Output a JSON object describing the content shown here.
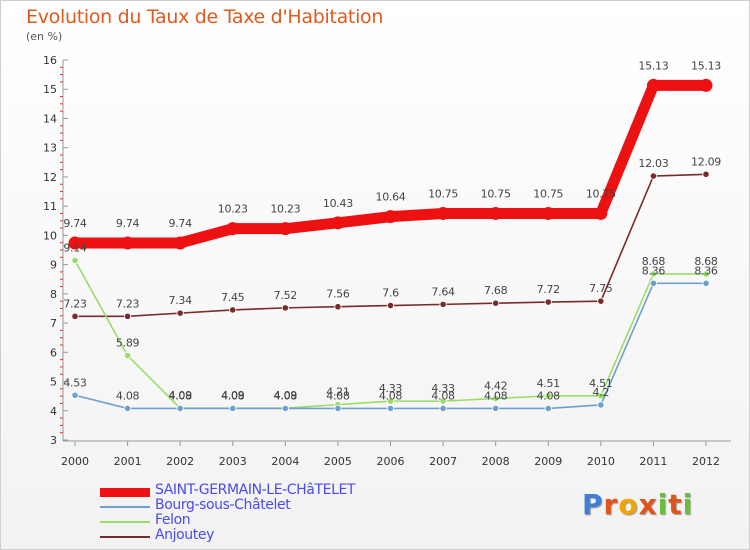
{
  "header": {
    "title": "Evolution du Taux de Taxe d'Habitation",
    "subtitle": "(en %)"
  },
  "logo": {
    "letters": [
      "P",
      "r",
      "o",
      "x",
      "i",
      "t",
      "i"
    ],
    "colors": [
      "#3f80d4",
      "#e0551d",
      "#f0a500",
      "#e0551d",
      "#6abf3a",
      "#e0551d",
      "#6abf3a"
    ]
  },
  "chart_data": {
    "type": "line",
    "title": "Evolution du Taux de Taxe d'Habitation",
    "ylabel": "(en %)",
    "xlabel": "",
    "categories": [
      "2000",
      "2001",
      "2002",
      "2003",
      "2004",
      "2005",
      "2006",
      "2007",
      "2008",
      "2009",
      "2010",
      "2011",
      "2012"
    ],
    "y_ticks": [
      3,
      4,
      5,
      6,
      7,
      8,
      9,
      10,
      11,
      12,
      13,
      14,
      15,
      16
    ],
    "ylim": [
      3,
      16
    ],
    "grid": false,
    "series": [
      {
        "name": "SAINT-GERMAIN-LE-CHâTELET",
        "color": "#ee1111",
        "values": [
          9.74,
          9.74,
          9.74,
          10.23,
          10.23,
          10.43,
          10.64,
          10.75,
          10.75,
          10.75,
          10.75,
          15.13,
          15.13
        ],
        "labels": [
          "9.74",
          "9.74",
          "9.74",
          "10.23",
          "10.23",
          "10.43",
          "10.64",
          "10.75",
          "10.75",
          "10.75",
          "10.75",
          "15.13",
          "15.13"
        ]
      },
      {
        "name": "Bourg-sous-Châtelet",
        "color": "#6f9fcf",
        "values": [
          4.53,
          4.08,
          4.08,
          4.08,
          4.08,
          4.08,
          4.08,
          4.08,
          4.08,
          4.08,
          4.2,
          8.36,
          8.36
        ],
        "labels": [
          "4.53",
          "4.08",
          "4.08",
          "4.08",
          "4.08",
          "4.08",
          "4.08",
          "4.08",
          "4.08",
          "4.08",
          "4.2",
          "8.36",
          "8.36"
        ]
      },
      {
        "name": "Felon",
        "color": "#99dd66",
        "values": [
          9.14,
          5.89,
          4.09,
          4.09,
          4.09,
          4.21,
          4.33,
          4.33,
          4.42,
          4.51,
          4.51,
          8.68,
          8.68
        ],
        "labels": [
          "9.14",
          "5.89",
          "4.09",
          "4.09",
          "4.09",
          "4.21",
          "4.33",
          "4.33",
          "4.42",
          "4.51",
          "4.51",
          "8.68",
          "8.68"
        ]
      },
      {
        "name": "Anjoutey",
        "color": "#7a2a2a",
        "values": [
          7.23,
          7.23,
          7.34,
          7.45,
          7.52,
          7.56,
          7.6,
          7.64,
          7.68,
          7.72,
          7.75,
          12.03,
          12.09
        ],
        "labels": [
          "7.23",
          "7.23",
          "7.34",
          "7.45",
          "7.52",
          "7.56",
          "7.6",
          "7.64",
          "7.68",
          "7.72",
          "7.75",
          "12.03",
          "12.09"
        ]
      }
    ]
  }
}
